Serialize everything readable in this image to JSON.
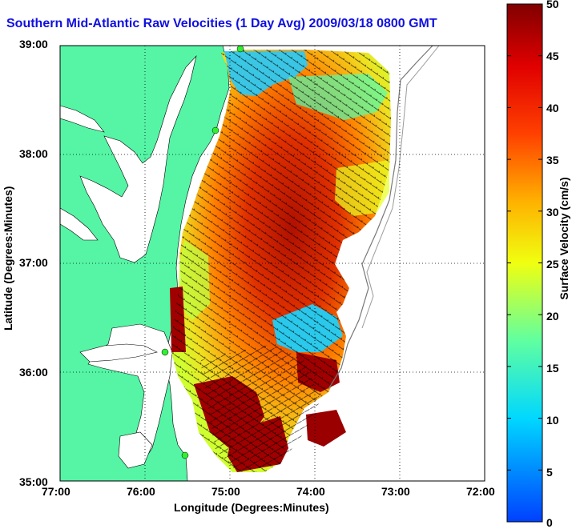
{
  "title": "Southern Mid-Atlantic Raw Velocities (1 Day Avg) 2009/03/18 0800 GMT",
  "xlabel": "Longitude (Degrees:Minutes)",
  "ylabel": "Latitude (Degrees:Minutes)",
  "x_ticks": [
    "77:00",
    "76:00",
    "75:00",
    "74:00",
    "73:00",
    "72:00"
  ],
  "y_ticks": [
    "39:00",
    "38:00",
    "37:00",
    "36:00",
    "35:00"
  ],
  "colorbar": {
    "label": "Surface Velocity (cm/s)",
    "ticks": [
      "50",
      "45",
      "40",
      "35",
      "30",
      "25",
      "20",
      "15",
      "10",
      "5",
      "0"
    ],
    "range": [
      0,
      50
    ]
  },
  "colors": {
    "land": "#55f5a5",
    "water": "#ffffff",
    "title": "#1010e0"
  },
  "sites": [
    "north-site",
    "upper-delmarva-site",
    "upper-outer-banks-site",
    "lower-outer-banks-site"
  ]
}
